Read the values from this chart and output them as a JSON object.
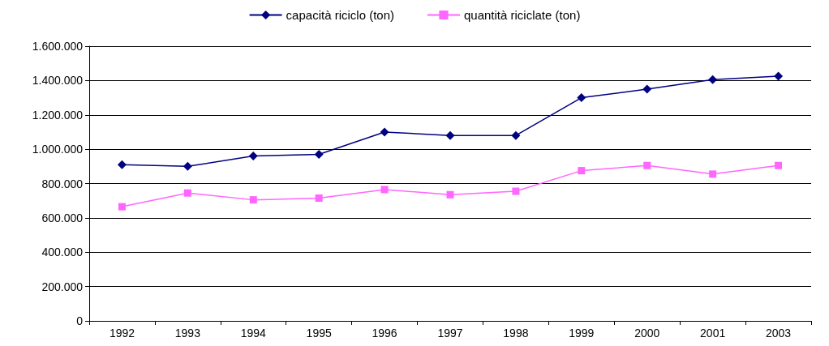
{
  "chart_data": {
    "type": "line",
    "categories": [
      "1992",
      "1993",
      "1994",
      "1995",
      "1996",
      "1997",
      "1998",
      "1999",
      "2000",
      "2001",
      "2003"
    ],
    "series": [
      {
        "name": "capacità riciclo (ton)",
        "color": "#000080",
        "marker": "diamond",
        "values": [
          910000,
          900000,
          960000,
          970000,
          1100000,
          1080000,
          1080000,
          1300000,
          1350000,
          1405000,
          1425000
        ]
      },
      {
        "name": "quantità riciclate (ton)",
        "color": "#ff66ff",
        "marker": "square",
        "values": [
          665000,
          745000,
          705000,
          715000,
          765000,
          735000,
          755000,
          875000,
          905000,
          855000,
          905000
        ]
      }
    ],
    "ylim": [
      0,
      1600000
    ],
    "yticks": [
      0,
      {
        "value": 200000,
        "label": "200.000"
      },
      {
        "value": 400000,
        "label": "400.000"
      },
      {
        "value": 600000,
        "label": "600.000"
      },
      {
        "value": 800000,
        "label": "800.000"
      },
      {
        "value": 1000000,
        "label": "1.000.000"
      },
      {
        "value": 1200000,
        "label": "1.200.000"
      },
      {
        "value": 1400000,
        "label": "1.400.000"
      },
      {
        "value": 1600000,
        "label": "1.600.000"
      }
    ],
    "grid": "y",
    "legend": "top",
    "line_style": "solid"
  }
}
